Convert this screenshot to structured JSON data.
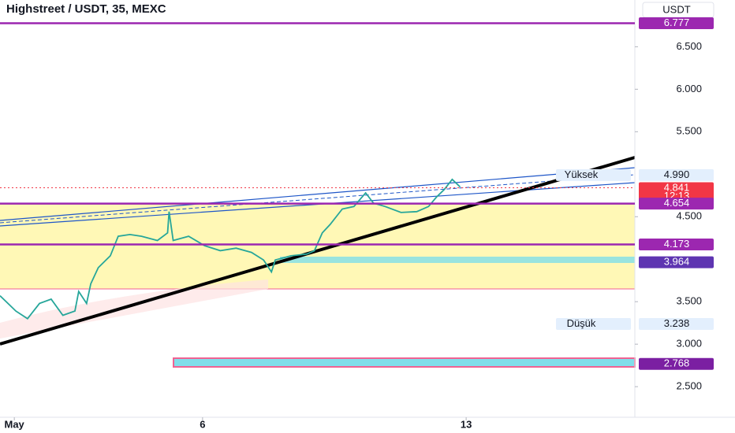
{
  "chart_data": {
    "type": "line",
    "title": "Highstreet / USDT, 35, MEXC",
    "currency": "USDT",
    "series": [
      {
        "name": "HIGH/USDT",
        "color": "#26a69a",
        "x": [
          0.62,
          1.04,
          1.35,
          1.67,
          1.98,
          2.29,
          2.61,
          2.71,
          2.92,
          3.03,
          3.23,
          3.55,
          3.76,
          4.07,
          4.38,
          4.8,
          5.07,
          5.11,
          5.22,
          5.63,
          6.05,
          6.47,
          6.89,
          7.3,
          7.62,
          7.83,
          7.93,
          8.35,
          8.77,
          8.97,
          9.18,
          9.39,
          9.71,
          10.02,
          10.33,
          10.54,
          10.85,
          11.27,
          11.69,
          12.0,
          12.21,
          12.42,
          12.63,
          12.84
        ],
        "values": [
          3.57,
          3.39,
          3.3,
          3.48,
          3.53,
          3.34,
          3.39,
          3.62,
          3.48,
          3.71,
          3.9,
          4.04,
          4.27,
          4.29,
          4.27,
          4.22,
          4.31,
          4.56,
          4.22,
          4.27,
          4.16,
          4.1,
          4.13,
          4.08,
          3.99,
          3.85,
          3.99,
          4.04,
          4.06,
          4.1,
          4.31,
          4.41,
          4.59,
          4.62,
          4.78,
          4.66,
          4.62,
          4.55,
          4.56,
          4.62,
          4.73,
          4.82,
          4.94,
          4.85
        ]
      }
    ],
    "xlim": [
      0.62,
      17.48
    ],
    "xticks": [
      {
        "value": 1,
        "label": "May"
      },
      {
        "value": 6,
        "label": "6"
      },
      {
        "value": 13,
        "label": "13"
      }
    ],
    "ylim": [
      2.14,
      7.05
    ],
    "yticks": [
      {
        "value": 2.5,
        "label": "2.500"
      },
      {
        "value": 3,
        "label": "3.000"
      },
      {
        "value": 3.5,
        "label": "3.500"
      },
      {
        "value": 4.5,
        "label": "4.500"
      },
      {
        "value": 5.5,
        "label": "5.500"
      },
      {
        "value": 6,
        "label": "6.000"
      },
      {
        "value": 6.5,
        "label": "6.500"
      }
    ],
    "levels": [
      {
        "value": 6.777,
        "label": "6.777",
        "color": "#9c27b0",
        "line": true
      },
      {
        "value": 4.99,
        "label": "4.990",
        "tag": "Yüksek",
        "color": "#e3effd"
      },
      {
        "value": 4.841,
        "label": "4.841",
        "timer": "12:13",
        "color": "#f23645",
        "line": true
      },
      {
        "value": 4.654,
        "label": "4.654",
        "color": "#9c27b0",
        "line": true
      },
      {
        "value": 4.173,
        "label": "4.173",
        "color": "#9c27b0",
        "line": true
      },
      {
        "value": 3.964,
        "label": "3.964",
        "color": "#5e35b1"
      },
      {
        "value": 3.238,
        "label": "3.238",
        "tag": "Düşük",
        "color": "#e3effd"
      },
      {
        "value": 2.768,
        "label": "2.768",
        "color": "#7b1fa2"
      }
    ]
  }
}
